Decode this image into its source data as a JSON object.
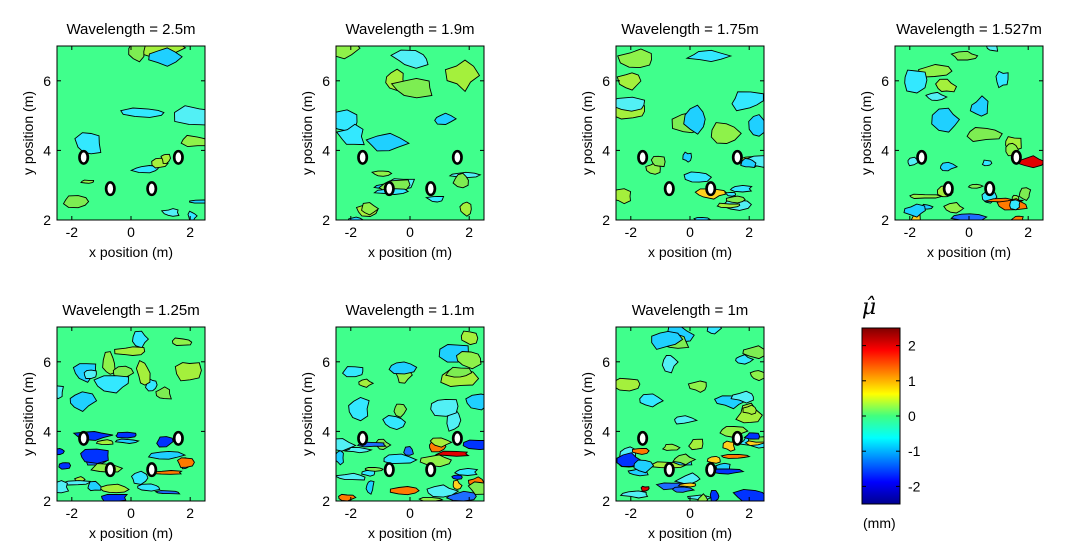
{
  "chart_data": {
    "type": "heatmap",
    "colorbar": {
      "title": "μ̂",
      "unit": "(mm)",
      "tick_labels": [
        "2",
        "1",
        "0",
        "-1",
        "-2"
      ],
      "tick_values": [
        2,
        1,
        0,
        -1,
        -2
      ],
      "range": [
        -2.5,
        2.5
      ],
      "colormap": "jet"
    },
    "panels": [
      {
        "title": "Wavelength = 2.5m",
        "wavelength_m": 2.5,
        "xlabel": "x position (m)",
        "ylabel": "y position (m)",
        "xlim": [
          -2.5,
          2.5
        ],
        "ylim": [
          2,
          7
        ],
        "xticks": [
          "-2",
          "0",
          "2"
        ],
        "yticks": [
          "2",
          "4",
          "6"
        ]
      },
      {
        "title": "Wavelength = 1.9m",
        "wavelength_m": 1.9,
        "xlabel": "x position (m)",
        "ylabel": "y position (m)",
        "xlim": [
          -2.5,
          2.5
        ],
        "ylim": [
          2,
          7
        ],
        "xticks": [
          "-2",
          "0",
          "2"
        ],
        "yticks": [
          "2",
          "4",
          "6"
        ]
      },
      {
        "title": "Wavelength = 1.75m",
        "wavelength_m": 1.75,
        "xlabel": "x position (m)",
        "ylabel": "y position (m)",
        "xlim": [
          -2.5,
          2.5
        ],
        "ylim": [
          2,
          7
        ],
        "xticks": [
          "-2",
          "0",
          "2"
        ],
        "yticks": [
          "2",
          "4",
          "6"
        ]
      },
      {
        "title": "Wavelength = 1.527m",
        "wavelength_m": 1.527,
        "xlabel": "x position (m)",
        "ylabel": "y position (m)",
        "xlim": [
          -2.5,
          2.5
        ],
        "ylim": [
          2,
          7
        ],
        "xticks": [
          "-2",
          "0",
          "2"
        ],
        "yticks": [
          "2",
          "4",
          "6"
        ]
      },
      {
        "title": "Wavelength = 1.25m",
        "wavelength_m": 1.25,
        "xlabel": "x position (m)",
        "ylabel": "y position (m)",
        "xlim": [
          -2.5,
          2.5
        ],
        "ylim": [
          2,
          7
        ],
        "xticks": [
          "-2",
          "0",
          "2"
        ],
        "yticks": [
          "2",
          "4",
          "6"
        ]
      },
      {
        "title": "Wavelength = 1.1m",
        "wavelength_m": 1.1,
        "xlabel": "x position (m)",
        "ylabel": "y position (m)",
        "xlim": [
          -2.5,
          2.5
        ],
        "ylim": [
          2,
          7
        ],
        "xticks": [
          "-2",
          "0",
          "2"
        ],
        "yticks": [
          "2",
          "4",
          "6"
        ]
      },
      {
        "title": "Wavelength = 1m",
        "wavelength_m": 1.0,
        "xlabel": "x position (m)",
        "ylabel": "y position (m)",
        "xlim": [
          -2.5,
          2.5
        ],
        "ylim": [
          2,
          7
        ],
        "xticks": [
          "-2",
          "0",
          "2"
        ],
        "yticks": [
          "2",
          "4",
          "6"
        ]
      }
    ],
    "markers": [
      {
        "x": -1.6,
        "y": 3.8
      },
      {
        "x": 1.6,
        "y": 3.8
      },
      {
        "x": -0.7,
        "y": 2.9
      },
      {
        "x": 0.7,
        "y": 2.9
      }
    ]
  }
}
